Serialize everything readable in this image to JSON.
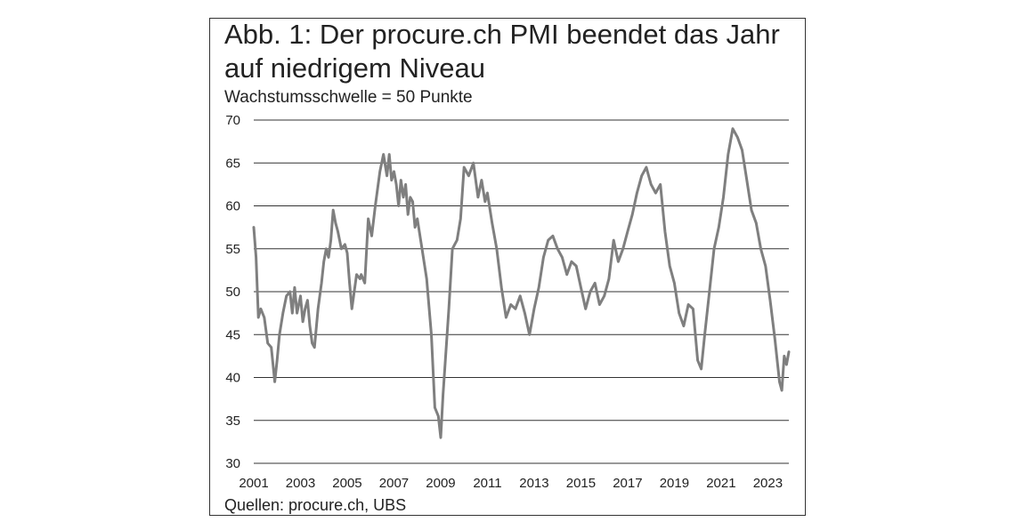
{
  "figure": {
    "title_line1": "Abb. 1: Der procure.ch PMI beendet das Jahr",
    "title_line2": "auf niedrigem Niveau",
    "subtitle": "Wachstumsschwelle = 50 Punkte",
    "source": "Quellen: procure.ch, UBS"
  },
  "chart_data": {
    "type": "line",
    "title": "Abb. 1: Der procure.ch PMI beendet das Jahr auf niedrigem Niveau",
    "subtitle": "Wachstumsschwelle = 50 Punkte",
    "xlabel": "",
    "ylabel": "",
    "ylim": [
      30,
      70
    ],
    "xlim": [
      2001,
      2023.9
    ],
    "yticks": [
      30,
      35,
      40,
      45,
      50,
      55,
      60,
      65,
      70
    ],
    "xticks": [
      "2001",
      "2003",
      "2005",
      "2007",
      "2009",
      "2011",
      "2013",
      "2015",
      "2017",
      "2019",
      "2021",
      "2023"
    ],
    "grid": "horizontal",
    "line_color": "#7f7f7f",
    "series": [
      {
        "name": "",
        "x": [
          2001.0,
          2001.1,
          2001.2,
          2001.3,
          2001.45,
          2001.6,
          2001.75,
          2001.9,
          2002.0,
          2002.1,
          2002.25,
          2002.4,
          2002.55,
          2002.65,
          2002.75,
          2002.85,
          2003.0,
          2003.1,
          2003.2,
          2003.3,
          2003.4,
          2003.5,
          2003.6,
          2003.75,
          2003.9,
          2004.0,
          2004.1,
          2004.2,
          2004.3,
          2004.4,
          2004.5,
          2004.6,
          2004.75,
          2004.9,
          2005.0,
          2005.1,
          2005.2,
          2005.4,
          2005.55,
          2005.6,
          2005.75,
          2005.9,
          2006.05,
          2006.2,
          2006.3,
          2006.4,
          2006.55,
          2006.7,
          2006.8,
          2006.9,
          2007.0,
          2007.1,
          2007.2,
          2007.3,
          2007.4,
          2007.5,
          2007.6,
          2007.7,
          2007.8,
          2007.9,
          2008.0,
          2008.2,
          2008.4,
          2008.6,
          2008.75,
          2008.9,
          2009.0,
          2009.1,
          2009.2,
          2009.35,
          2009.5,
          2009.7,
          2009.85,
          2010.0,
          2010.2,
          2010.4,
          2010.6,
          2010.75,
          2010.9,
          2011.0,
          2011.2,
          2011.4,
          2011.6,
          2011.8,
          2012.0,
          2012.2,
          2012.4,
          2012.6,
          2012.8,
          2013.0,
          2013.2,
          2013.4,
          2013.6,
          2013.8,
          2014.0,
          2014.2,
          2014.4,
          2014.6,
          2014.8,
          2015.0,
          2015.2,
          2015.4,
          2015.6,
          2015.8,
          2016.0,
          2016.2,
          2016.4,
          2016.6,
          2016.8,
          2017.0,
          2017.2,
          2017.4,
          2017.6,
          2017.8,
          2018.0,
          2018.2,
          2018.4,
          2018.6,
          2018.8,
          2019.0,
          2019.2,
          2019.4,
          2019.6,
          2019.8,
          2020.0,
          2020.15,
          2020.3,
          2020.5,
          2020.7,
          2020.9,
          2021.1,
          2021.3,
          2021.5,
          2021.7,
          2021.9,
          2022.1,
          2022.3,
          2022.5,
          2022.7,
          2022.9,
          2023.1,
          2023.3,
          2023.5,
          2023.6,
          2023.7,
          2023.8,
          2023.9
        ],
        "values": [
          57.5,
          54.0,
          47.0,
          48.0,
          47.0,
          44.0,
          43.5,
          39.5,
          42.0,
          45.0,
          47.5,
          49.5,
          50.0,
          47.5,
          50.5,
          47.5,
          49.5,
          46.5,
          48.0,
          49.0,
          46.0,
          44.0,
          43.5,
          48.0,
          51.0,
          53.5,
          55.0,
          54.0,
          56.0,
          59.5,
          58.0,
          57.0,
          55.0,
          55.5,
          54.5,
          51.0,
          48.0,
          52.0,
          51.5,
          52.0,
          51.0,
          58.5,
          56.5,
          60.0,
          62.0,
          64.0,
          66.0,
          63.5,
          66.0,
          63.0,
          64.0,
          62.5,
          60.0,
          63.0,
          61.0,
          62.5,
          59.0,
          61.0,
          60.5,
          57.5,
          58.5,
          55.0,
          51.5,
          45.0,
          36.5,
          35.5,
          33.0,
          38.0,
          42.0,
          48.0,
          55.0,
          56.0,
          58.5,
          64.5,
          63.5,
          65.0,
          61.0,
          63.0,
          60.5,
          61.5,
          58.0,
          55.0,
          50.5,
          47.0,
          48.5,
          48.0,
          49.5,
          47.5,
          45.0,
          48.0,
          50.5,
          54.0,
          56.0,
          56.5,
          55.0,
          54.0,
          52.0,
          53.5,
          53.0,
          50.5,
          48.0,
          50.0,
          51.0,
          48.5,
          49.5,
          51.5,
          56.0,
          53.5,
          55.0,
          57.0,
          59.0,
          61.5,
          63.5,
          64.5,
          62.5,
          61.5,
          62.5,
          57.0,
          53.0,
          51.0,
          47.5,
          46.0,
          48.5,
          48.0,
          42.0,
          41.0,
          45.0,
          50.0,
          55.0,
          57.5,
          61.0,
          66.0,
          69.0,
          68.0,
          66.5,
          63.0,
          59.5,
          58.0,
          55.0,
          53.0,
          49.0,
          44.5,
          39.5,
          38.5,
          42.5,
          41.5,
          43.0
        ]
      }
    ]
  }
}
